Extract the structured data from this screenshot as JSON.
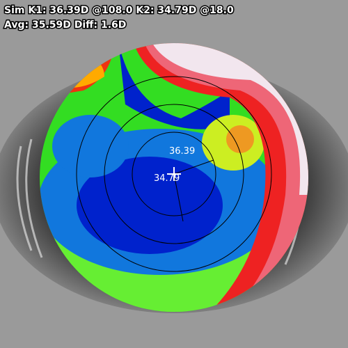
{
  "header": {
    "line1": "Sim K1: 36.39D @108.0 K2: 34.79D @18.0",
    "line2": "Avg: 35.59D Diff: 1.6D"
  },
  "map": {
    "k1_label": "36.39",
    "k2_label": "34.79"
  }
}
